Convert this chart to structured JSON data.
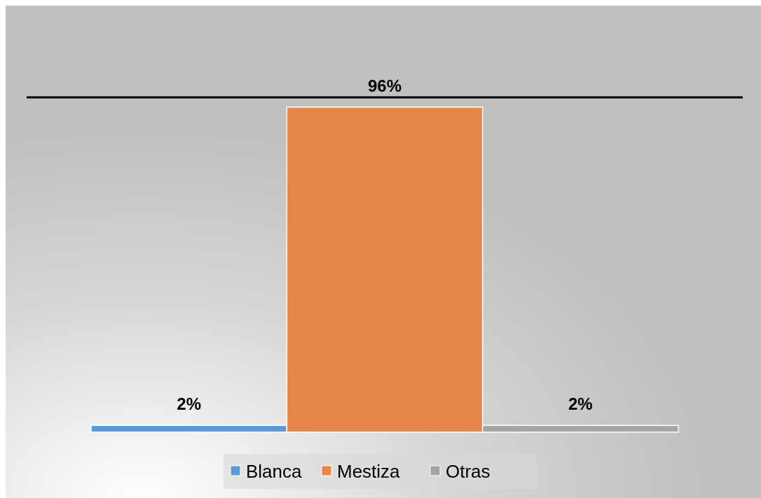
{
  "chart_data": {
    "type": "bar",
    "categories": [
      null
    ],
    "series": [
      {
        "name": "Blanca",
        "color": "#5b9bd5",
        "values": [
          2
        ],
        "value_labels": [
          "2%"
        ]
      },
      {
        "name": "Mestiza",
        "color": "#e6874a",
        "values": [
          96
        ],
        "value_labels": [
          "96%"
        ]
      },
      {
        "name": "Otras",
        "color": "#a5a5a5",
        "values": [
          2
        ],
        "value_labels": [
          "2%"
        ]
      }
    ],
    "legend": "bottom"
  }
}
